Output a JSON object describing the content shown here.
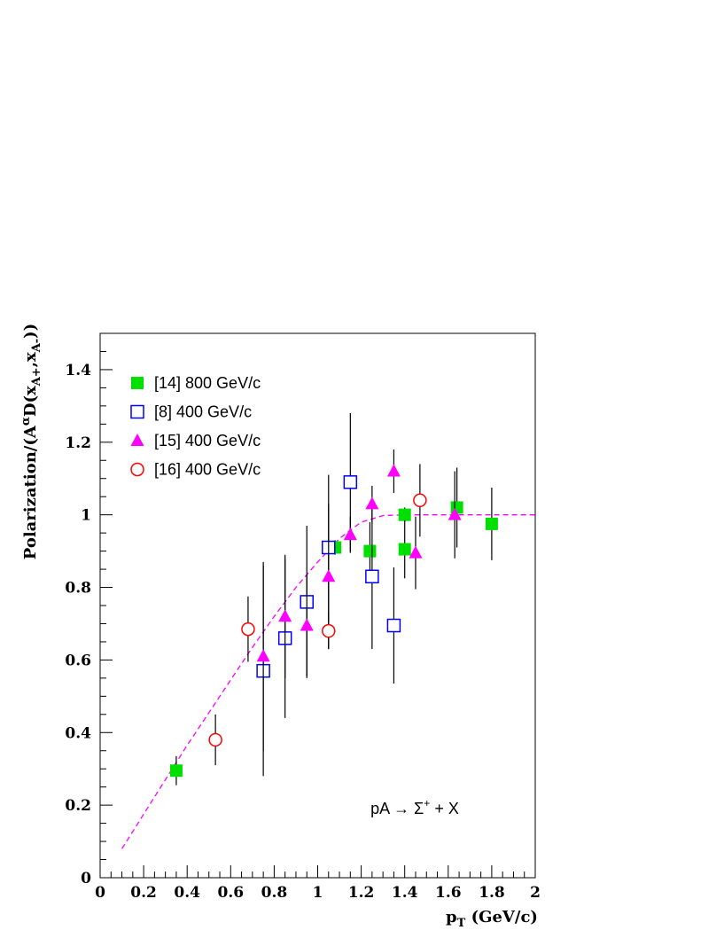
{
  "chart_data": {
    "type": "scatter",
    "title": "",
    "xlabel": "p",
    "xlabel_sub": "T",
    "xlabel_units": " (GeV/c)",
    "ylabel": "Polarization/(A",
    "ylabel_sup": "α",
    "ylabel_rest": "D(x",
    "ylabel_sub1": "A+",
    "ylabel_mid": ",x",
    "ylabel_sub2": "A-",
    "ylabel_end": "))",
    "xlim": [
      0,
      2
    ],
    "ylim": [
      0,
      1.5
    ],
    "x_ticks": [
      "0",
      "0.2",
      "0.4",
      "0.6",
      "0.8",
      "1",
      "1.2",
      "1.4",
      "1.6",
      "1.8",
      "2"
    ],
    "y_ticks": [
      "0",
      "0.2",
      "0.4",
      "0.6",
      "0.8",
      "1",
      "1.2",
      "1.4"
    ],
    "legend_position": "top-left",
    "annotation": "pA → Σ",
    "annotation_sup": "+",
    "annotation_end": " + X",
    "series": [
      {
        "name": "[14] 800 GeV/c",
        "marker": "filled-square",
        "color": "#00e000",
        "points": [
          {
            "x": 0.35,
            "y": 0.295,
            "err": 0.04
          },
          {
            "x": 1.08,
            "y": 0.91,
            "err": 0.02
          },
          {
            "x": 1.24,
            "y": 0.9,
            "err": 0.08
          },
          {
            "x": 1.4,
            "y": 1.0,
            "err": 0.02
          },
          {
            "x": 1.4,
            "y": 0.905,
            "err": 0.08
          },
          {
            "x": 1.64,
            "y": 1.02,
            "err": 0.11
          },
          {
            "x": 1.8,
            "y": 0.975,
            "err": 0.1
          }
        ]
      },
      {
        "name": "[8] 400 GeV/c",
        "marker": "open-square",
        "color": "#0000ff",
        "points": [
          {
            "x": 0.75,
            "y": 0.57,
            "err": 0.29
          },
          {
            "x": 0.85,
            "y": 0.66,
            "err": 0.22
          },
          {
            "x": 0.95,
            "y": 0.76,
            "err": 0.21
          },
          {
            "x": 1.05,
            "y": 0.91,
            "err": 0.2
          },
          {
            "x": 1.15,
            "y": 1.09,
            "err": 0.19
          },
          {
            "x": 1.25,
            "y": 0.83,
            "err": 0.2
          },
          {
            "x": 1.35,
            "y": 0.695,
            "err": 0.16
          }
        ]
      },
      {
        "name": "[15] 400 GeV/c",
        "marker": "filled-triangle",
        "color": "#ff00ff",
        "points": [
          {
            "x": 0.75,
            "y": 0.61,
            "err": 0.26
          },
          {
            "x": 0.85,
            "y": 0.72,
            "err": 0.17
          },
          {
            "x": 0.95,
            "y": 0.695,
            "err": 0.14
          },
          {
            "x": 1.05,
            "y": 0.83,
            "err": 0.2
          },
          {
            "x": 1.15,
            "y": 0.945,
            "err": 0.05
          },
          {
            "x": 1.25,
            "y": 1.03,
            "err": 0.05
          },
          {
            "x": 1.35,
            "y": 1.12,
            "err": 0.06
          },
          {
            "x": 1.45,
            "y": 0.895,
            "err": 0.1
          },
          {
            "x": 1.63,
            "y": 1.0,
            "err": 0.12
          }
        ]
      },
      {
        "name": "[16] 400 GeV/c",
        "marker": "open-circle",
        "color": "#ff0000",
        "points": [
          {
            "x": 0.53,
            "y": 0.38,
            "err": 0.07
          },
          {
            "x": 0.68,
            "y": 0.685,
            "err": 0.09
          },
          {
            "x": 1.05,
            "y": 0.68,
            "err": 0.05
          },
          {
            "x": 1.47,
            "y": 1.04,
            "err": 0.1
          }
        ]
      }
    ],
    "fit_curve": {
      "color": "#ff00ff",
      "style": "dashed",
      "points": [
        {
          "x": 0.1,
          "y": 0.08
        },
        {
          "x": 0.2,
          "y": 0.175
        },
        {
          "x": 0.3,
          "y": 0.27
        },
        {
          "x": 0.4,
          "y": 0.365
        },
        {
          "x": 0.5,
          "y": 0.455
        },
        {
          "x": 0.6,
          "y": 0.545
        },
        {
          "x": 0.7,
          "y": 0.635
        },
        {
          "x": 0.8,
          "y": 0.72
        },
        {
          "x": 0.9,
          "y": 0.8
        },
        {
          "x": 1.0,
          "y": 0.87
        },
        {
          "x": 1.1,
          "y": 0.935
        },
        {
          "x": 1.2,
          "y": 0.98
        },
        {
          "x": 1.3,
          "y": 0.998
        },
        {
          "x": 1.4,
          "y": 1.0
        },
        {
          "x": 1.6,
          "y": 1.0
        },
        {
          "x": 1.8,
          "y": 1.0
        },
        {
          "x": 2.0,
          "y": 1.0
        }
      ]
    }
  }
}
